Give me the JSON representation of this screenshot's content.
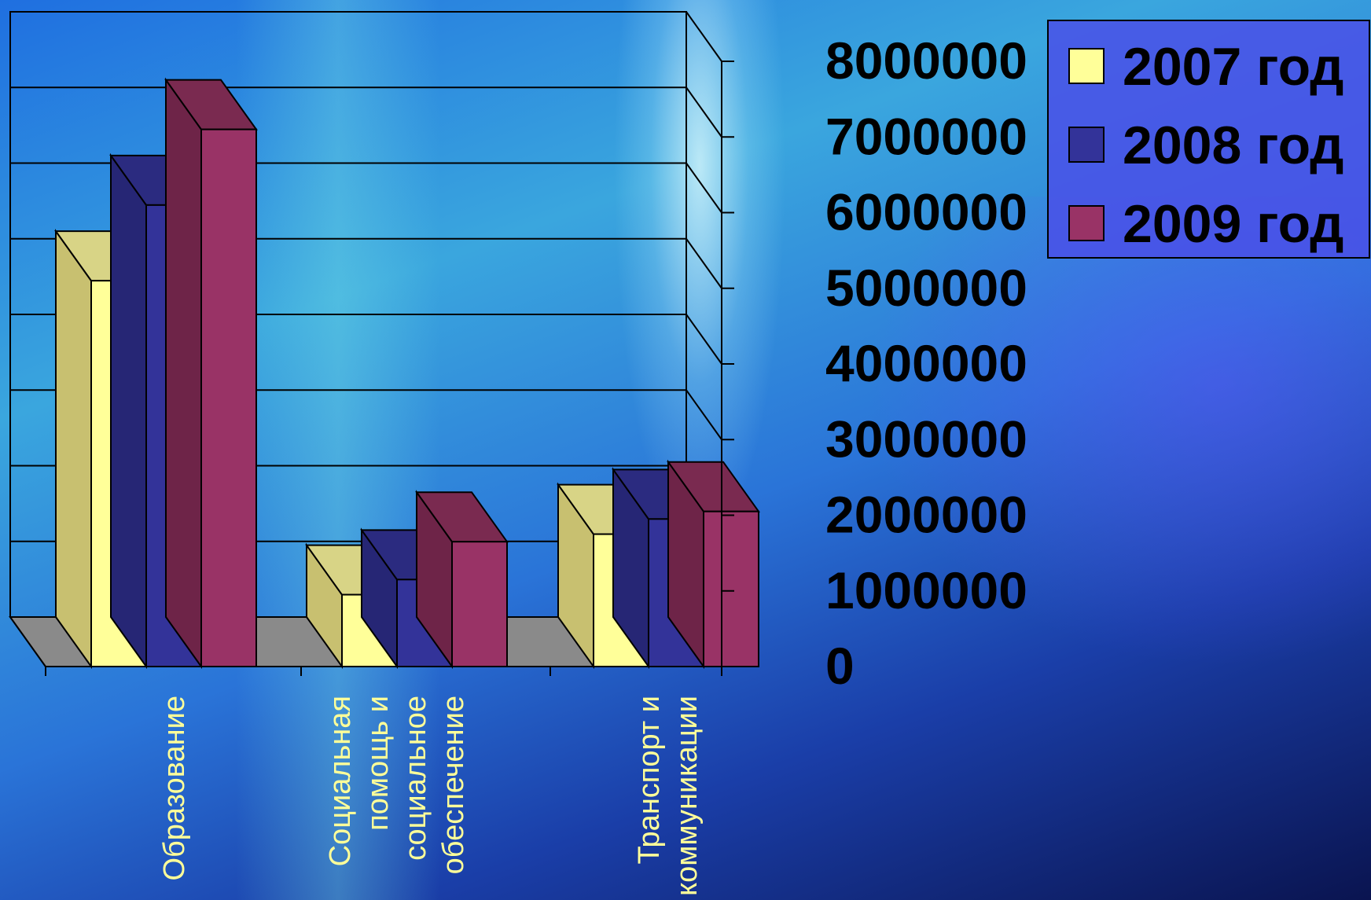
{
  "chart_data": {
    "type": "bar",
    "categories": [
      "Образование",
      "Социальная помощь и социальное обеспечение",
      "Транспорт и коммуникации"
    ],
    "category_label_lines": [
      [
        "Образование"
      ],
      [
        "Социальная",
        "помощь и",
        "социальное",
        "обеспечение"
      ],
      [
        "Транспорт и",
        "коммуникации"
      ]
    ],
    "series": [
      {
        "name": "2007 год",
        "values": [
          5100000,
          950000,
          1750000
        ],
        "color": "#ffff99",
        "side": "#c8c070",
        "top": "#d8d486"
      },
      {
        "name": "2008 год",
        "values": [
          6100000,
          1150000,
          1950000
        ],
        "color": "#333399",
        "side": "#262675",
        "top": "#2b2b80"
      },
      {
        "name": "2009 год",
        "values": [
          7100000,
          1650000,
          2050000
        ],
        "color": "#993366",
        "side": "#6e2448",
        "top": "#7a2a50"
      }
    ],
    "ylim": [
      0,
      8000000
    ],
    "y_ticks": [
      "0",
      "1000000",
      "2000000",
      "3000000",
      "4000000",
      "5000000",
      "6000000",
      "7000000",
      "8000000"
    ],
    "legend_position": "top-right",
    "gridlines": true
  }
}
